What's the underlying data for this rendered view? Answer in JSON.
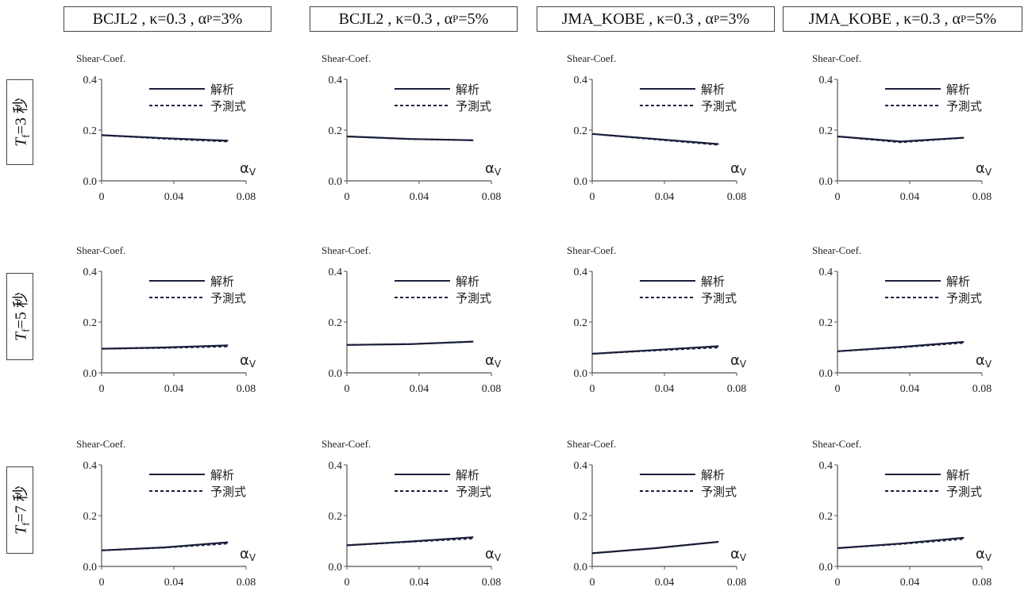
{
  "column_titles": [
    {
      "main": "BCJL2 , κ=0.3 , α",
      "sub": "P",
      "tail": "=3%"
    },
    {
      "main": "BCJL2 , κ=0.3 , α",
      "sub": "P",
      "tail": "=5%"
    },
    {
      "main": "JMA_KOBE , κ=0.3 , α",
      "sub": "P",
      "tail": "=3%"
    },
    {
      "main": "JMA_KOBE , κ=0.3 , α",
      "sub": "P",
      "tail": "=5%"
    }
  ],
  "row_labels": [
    {
      "var": "T",
      "sub": "f",
      "text": "=3 秒"
    },
    {
      "var": "T",
      "sub": "f",
      "text": "=5 秒"
    },
    {
      "var": "T",
      "sub": "f",
      "text": "=7 秒"
    }
  ],
  "colors": {
    "line": "#1a1f3a",
    "axis": "#555555",
    "text": "#222222"
  },
  "chart_data": [
    {
      "type": "line",
      "row": 0,
      "col": 0,
      "ylabel": "Shear-Coef.",
      "xlabel": "αV",
      "xlim": [
        0,
        0.08
      ],
      "ylim": [
        0,
        0.4
      ],
      "xticks": [
        "0",
        "0.04",
        "0.08"
      ],
      "yticks": [
        "0.0",
        "0.2",
        "0.4"
      ],
      "series": [
        {
          "name": "解析",
          "style": "solid",
          "x": [
            0,
            0.035,
            0.07
          ],
          "y": [
            0.18,
            0.168,
            0.158
          ]
        },
        {
          "name": "予測式",
          "style": "dashed",
          "x": [
            0,
            0.035,
            0.07
          ],
          "y": [
            0.18,
            0.166,
            0.155
          ]
        }
      ]
    },
    {
      "type": "line",
      "row": 0,
      "col": 1,
      "ylabel": "Shear-Coef.",
      "xlabel": "αV",
      "xlim": [
        0,
        0.08
      ],
      "ylim": [
        0,
        0.4
      ],
      "xticks": [
        "0",
        "0.04",
        "0.08"
      ],
      "yticks": [
        "0.0",
        "0.2",
        "0.4"
      ],
      "series": [
        {
          "name": "解析",
          "style": "solid",
          "x": [
            0,
            0.035,
            0.07
          ],
          "y": [
            0.175,
            0.165,
            0.16
          ]
        },
        {
          "name": "予測式",
          "style": "dashed",
          "x": [
            0,
            0.035,
            0.07
          ],
          "y": [
            0.175,
            0.165,
            0.16
          ]
        }
      ]
    },
    {
      "type": "line",
      "row": 0,
      "col": 2,
      "ylabel": "Shear-Coef.",
      "xlabel": "αV",
      "xlim": [
        0,
        0.08
      ],
      "ylim": [
        0,
        0.4
      ],
      "xticks": [
        "0",
        "0.04",
        "0.08"
      ],
      "yticks": [
        "0.0",
        "0.2",
        "0.4"
      ],
      "series": [
        {
          "name": "解析",
          "style": "solid",
          "x": [
            0,
            0.035,
            0.07
          ],
          "y": [
            0.185,
            0.165,
            0.145
          ]
        },
        {
          "name": "予測式",
          "style": "dashed",
          "x": [
            0,
            0.035,
            0.07
          ],
          "y": [
            0.185,
            0.163,
            0.142
          ]
        }
      ]
    },
    {
      "type": "line",
      "row": 0,
      "col": 3,
      "ylabel": "Shear-Coef.",
      "xlabel": "αV",
      "xlim": [
        0,
        0.08
      ],
      "ylim": [
        0,
        0.4
      ],
      "xticks": [
        "0",
        "0.04",
        "0.08"
      ],
      "yticks": [
        "0.0",
        "0.2",
        "0.4"
      ],
      "series": [
        {
          "name": "解析",
          "style": "solid",
          "x": [
            0,
            0.035,
            0.07
          ],
          "y": [
            0.175,
            0.155,
            0.17
          ]
        },
        {
          "name": "予測式",
          "style": "dashed",
          "x": [
            0,
            0.035,
            0.07
          ],
          "y": [
            0.175,
            0.152,
            0.17
          ]
        }
      ]
    },
    {
      "type": "line",
      "row": 1,
      "col": 0,
      "ylabel": "Shear-Coef.",
      "xlabel": "αV",
      "xlim": [
        0,
        0.08
      ],
      "ylim": [
        0,
        0.4
      ],
      "xticks": [
        "0",
        "0.04",
        "0.08"
      ],
      "yticks": [
        "0.0",
        "0.2",
        "0.4"
      ],
      "series": [
        {
          "name": "解析",
          "style": "solid",
          "x": [
            0,
            0.035,
            0.07
          ],
          "y": [
            0.095,
            0.1,
            0.108
          ]
        },
        {
          "name": "予測式",
          "style": "dashed",
          "x": [
            0,
            0.035,
            0.07
          ],
          "y": [
            0.095,
            0.098,
            0.104
          ]
        }
      ]
    },
    {
      "type": "line",
      "row": 1,
      "col": 1,
      "ylabel": "Shear-Coef.",
      "xlabel": "αV",
      "xlim": [
        0,
        0.08
      ],
      "ylim": [
        0,
        0.4
      ],
      "xticks": [
        "0",
        "0.04",
        "0.08"
      ],
      "yticks": [
        "0.0",
        "0.2",
        "0.4"
      ],
      "series": [
        {
          "name": "解析",
          "style": "solid",
          "x": [
            0,
            0.035,
            0.07
          ],
          "y": [
            0.11,
            0.113,
            0.123
          ]
        },
        {
          "name": "予測式",
          "style": "dashed",
          "x": [
            0,
            0.035,
            0.07
          ],
          "y": [
            0.11,
            0.113,
            0.123
          ]
        }
      ]
    },
    {
      "type": "line",
      "row": 1,
      "col": 2,
      "ylabel": "Shear-Coef.",
      "xlabel": "αV",
      "xlim": [
        0,
        0.08
      ],
      "ylim": [
        0,
        0.4
      ],
      "xticks": [
        "0",
        "0.04",
        "0.08"
      ],
      "yticks": [
        "0.0",
        "0.2",
        "0.4"
      ],
      "series": [
        {
          "name": "解析",
          "style": "solid",
          "x": [
            0,
            0.035,
            0.07
          ],
          "y": [
            0.075,
            0.09,
            0.105
          ]
        },
        {
          "name": "予測式",
          "style": "dashed",
          "x": [
            0,
            0.035,
            0.07
          ],
          "y": [
            0.075,
            0.088,
            0.1
          ]
        }
      ]
    },
    {
      "type": "line",
      "row": 1,
      "col": 3,
      "ylabel": "Shear-Coef.",
      "xlabel": "αV",
      "xlim": [
        0,
        0.08
      ],
      "ylim": [
        0,
        0.4
      ],
      "xticks": [
        "0",
        "0.04",
        "0.08"
      ],
      "yticks": [
        "0.0",
        "0.2",
        "0.4"
      ],
      "series": [
        {
          "name": "解析",
          "style": "solid",
          "x": [
            0,
            0.035,
            0.07
          ],
          "y": [
            0.085,
            0.102,
            0.122
          ]
        },
        {
          "name": "予測式",
          "style": "dashed",
          "x": [
            0,
            0.035,
            0.07
          ],
          "y": [
            0.085,
            0.1,
            0.118
          ]
        }
      ]
    },
    {
      "type": "line",
      "row": 2,
      "col": 0,
      "ylabel": "Shear-Coef.",
      "xlabel": "αV",
      "xlim": [
        0,
        0.08
      ],
      "ylim": [
        0,
        0.4
      ],
      "xticks": [
        "0",
        "0.04",
        "0.08"
      ],
      "yticks": [
        "0.0",
        "0.2",
        "0.4"
      ],
      "series": [
        {
          "name": "解析",
          "style": "solid",
          "x": [
            0,
            0.035,
            0.07
          ],
          "y": [
            0.063,
            0.075,
            0.095
          ]
        },
        {
          "name": "予測式",
          "style": "dashed",
          "x": [
            0,
            0.035,
            0.07
          ],
          "y": [
            0.063,
            0.074,
            0.09
          ]
        }
      ]
    },
    {
      "type": "line",
      "row": 2,
      "col": 1,
      "ylabel": "Shear-Coef.",
      "xlabel": "αV",
      "xlim": [
        0,
        0.08
      ],
      "ylim": [
        0,
        0.4
      ],
      "xticks": [
        "0",
        "0.04",
        "0.08"
      ],
      "yticks": [
        "0.0",
        "0.2",
        "0.4"
      ],
      "series": [
        {
          "name": "解析",
          "style": "solid",
          "x": [
            0,
            0.035,
            0.07
          ],
          "y": [
            0.083,
            0.098,
            0.115
          ]
        },
        {
          "name": "予測式",
          "style": "dashed",
          "x": [
            0,
            0.035,
            0.07
          ],
          "y": [
            0.083,
            0.097,
            0.11
          ]
        }
      ]
    },
    {
      "type": "line",
      "row": 2,
      "col": 2,
      "ylabel": "Shear-Coef.",
      "xlabel": "αV",
      "xlim": [
        0,
        0.08
      ],
      "ylim": [
        0,
        0.4
      ],
      "xticks": [
        "0",
        "0.04",
        "0.08"
      ],
      "yticks": [
        "0.0",
        "0.2",
        "0.4"
      ],
      "series": [
        {
          "name": "解析",
          "style": "solid",
          "x": [
            0,
            0.035,
            0.07
          ],
          "y": [
            0.052,
            0.072,
            0.097
          ]
        },
        {
          "name": "予測式",
          "style": "dashed",
          "x": [
            0,
            0.035,
            0.07
          ],
          "y": [
            0.052,
            0.072,
            0.097
          ]
        }
      ]
    },
    {
      "type": "line",
      "row": 2,
      "col": 3,
      "ylabel": "Shear-Coef.",
      "xlabel": "αV",
      "xlim": [
        0,
        0.08
      ],
      "ylim": [
        0,
        0.4
      ],
      "xticks": [
        "0",
        "0.04",
        "0.08"
      ],
      "yticks": [
        "0.0",
        "0.2",
        "0.4"
      ],
      "series": [
        {
          "name": "解析",
          "style": "solid",
          "x": [
            0,
            0.035,
            0.07
          ],
          "y": [
            0.072,
            0.09,
            0.113
          ]
        },
        {
          "name": "予測式",
          "style": "dashed",
          "x": [
            0,
            0.035,
            0.07
          ],
          "y": [
            0.072,
            0.088,
            0.108
          ]
        }
      ]
    }
  ]
}
